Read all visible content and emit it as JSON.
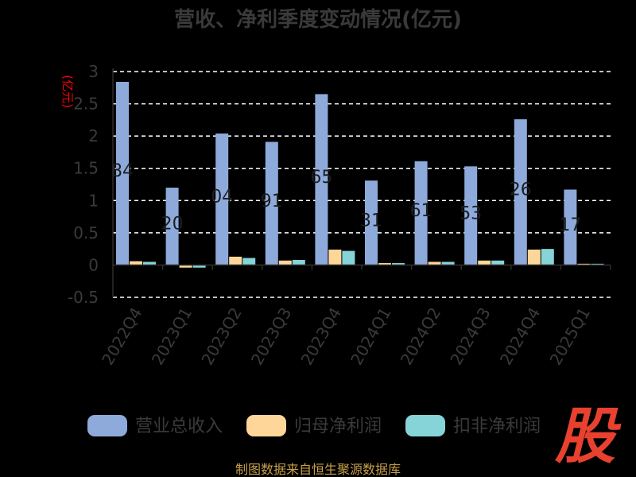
{
  "chart_data": {
    "type": "bar",
    "title": "营收、净利季度变动情况(亿元)",
    "ylabel": "(亿元)",
    "categories": [
      "2022Q4",
      "2023Q1",
      "2023Q2",
      "2023Q3",
      "2023Q4",
      "2024Q1",
      "2024Q2",
      "2024Q3",
      "2024Q4",
      "2025Q1"
    ],
    "series": [
      {
        "name": "营业总收入",
        "color": "#8eaadb",
        "values": [
          2.84,
          1.2,
          2.04,
          1.91,
          2.65,
          1.31,
          1.61,
          1.53,
          2.26,
          1.17
        ]
      },
      {
        "name": "归母净利润",
        "color": "#ffd699",
        "values": [
          0.06,
          -0.04,
          0.13,
          0.07,
          0.24,
          0.03,
          0.05,
          0.07,
          0.24,
          0.02
        ]
      },
      {
        "name": "扣非净利润",
        "color": "#86d4d7",
        "values": [
          0.05,
          -0.04,
          0.11,
          0.08,
          0.22,
          0.03,
          0.05,
          0.07,
          0.25,
          0.02
        ]
      }
    ],
    "data_labels": [
      "84",
      "20",
      "04",
      "91",
      "65",
      "31",
      "61",
      "53",
      "26",
      "17"
    ],
    "yticks": [
      "3",
      "2.5",
      "2",
      "1.5",
      "1",
      "0.5",
      "0",
      "-0.5"
    ],
    "ylim": [
      -0.5,
      3
    ],
    "grid": true,
    "legend_position": "bottom"
  },
  "source": "制图数据来自恒生聚源数据库",
  "logo": "股"
}
